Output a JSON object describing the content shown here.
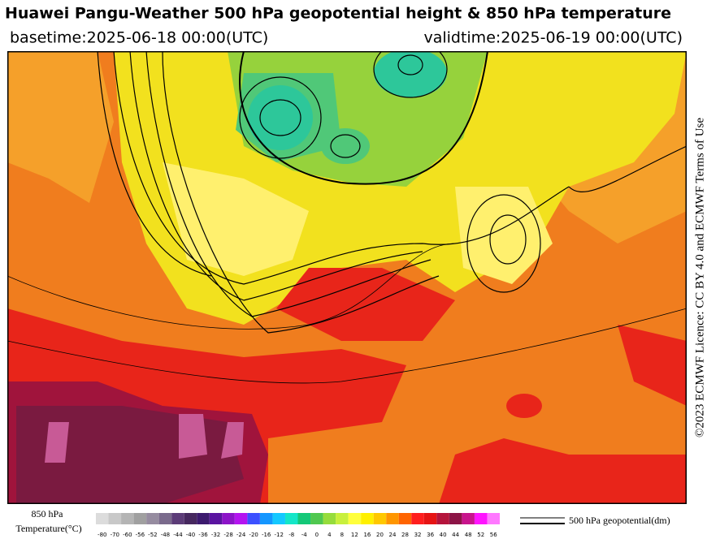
{
  "header": {
    "title": "Huawei Pangu-Weather 500 hPa geopotential height & 850 hPa temperature",
    "basetime": "basetime:2025-06-18 00:00(UTC)",
    "validtime": "validtime:2025-06-19 00:00(UTC)"
  },
  "credit": "©2023 ECMWF Licence: CC BY 4.0 and ECMWF Terms of Use",
  "legend": {
    "fill_label_1": "850 hPa",
    "fill_label_2": "Temperature(°C)",
    "ticks": [
      -80,
      -70,
      -60,
      -56,
      -52,
      -48,
      -44,
      -40,
      -36,
      -32,
      -28,
      -24,
      -20,
      -16,
      -12,
      -8,
      -4,
      0,
      4,
      8,
      12,
      16,
      20,
      24,
      28,
      32,
      36,
      40,
      44,
      48,
      52,
      56
    ],
    "colors": [
      "#dcdcdc",
      "#c8c8c8",
      "#b4b4b4",
      "#a0a0a0",
      "#968ca0",
      "#7a6a8c",
      "#5c3c78",
      "#46285f",
      "#3c1a6e",
      "#5a14a0",
      "#8c14c8",
      "#b414f0",
      "#3c50ff",
      "#1496ff",
      "#14c8ff",
      "#14e6c8",
      "#14c878",
      "#50c850",
      "#96dc3c",
      "#c8f03c",
      "#ffff3c",
      "#fff000",
      "#ffc800",
      "#ff9600",
      "#ff6400",
      "#ff1e1e",
      "#e61414",
      "#b4143c",
      "#8c1446",
      "#c8148c",
      "#ff14ff",
      "#ff78ff"
    ],
    "line_label": "500 hPa geopotential(dm)"
  }
}
